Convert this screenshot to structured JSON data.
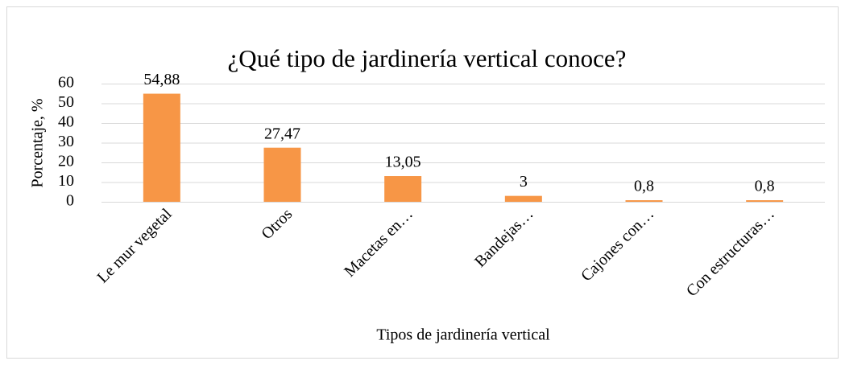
{
  "chart_data": {
    "type": "bar",
    "title": "¿Qué tipo de jardinería vertical conoce?",
    "x_label": "Tipos de jardinería vertical",
    "y_label": "Porcentaje, %",
    "categories": [
      "Le mur vegetal",
      "Otros",
      "Macetas en…",
      "Bandejas…",
      "Cajones con…",
      "Con estructuras…"
    ],
    "values": [
      54.88,
      27.47,
      13.05,
      3,
      0.8,
      0.8
    ],
    "value_labels": [
      "54,88",
      "27,47",
      "13,05",
      "3",
      "0,8",
      "0,8"
    ],
    "color": "#f79646",
    "ylim": [
      0,
      60
    ],
    "yticks": [
      0,
      10,
      20,
      30,
      40,
      50,
      60
    ],
    "grid": true
  }
}
